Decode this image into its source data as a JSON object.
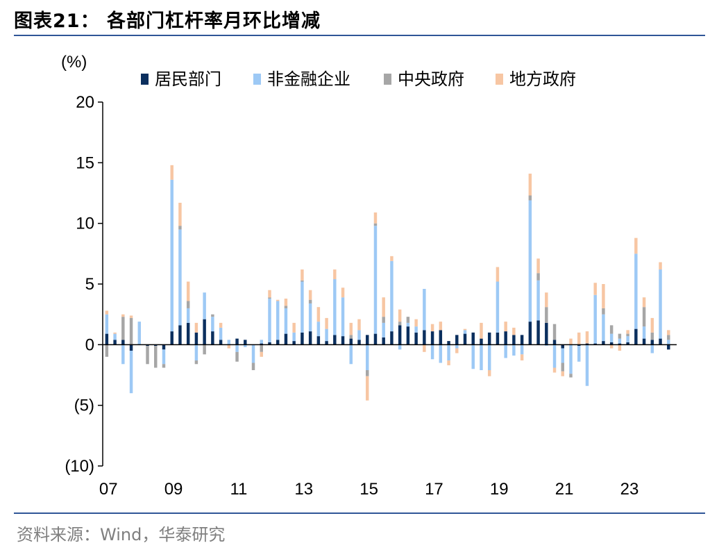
{
  "header": {
    "title": "图表21：  各部门杠杆率月环比增减"
  },
  "footer": {
    "source": "资料来源：Wind，华泰研究"
  },
  "chart_data": {
    "type": "bar",
    "stacked": true,
    "unit_label": "(%)",
    "ylim": [
      -10,
      20
    ],
    "yticks": [
      20,
      15,
      10,
      5,
      0,
      -5,
      -10
    ],
    "ytick_labels": [
      "20",
      "15",
      "10",
      "5",
      "0",
      "(5)",
      "(10)"
    ],
    "xtick_labels": [
      "07",
      "09",
      "11",
      "13",
      "15",
      "17",
      "19",
      "21",
      "23"
    ],
    "legend_position": "top",
    "colors": {
      "household": "#0b2f5e",
      "nonfin": "#9dc9f5",
      "central": "#a6a6a6",
      "local": "#f7c6a3"
    },
    "categories": [
      "07Q1",
      "07Q2",
      "07Q3",
      "07Q4",
      "08Q1",
      "08Q2",
      "08Q3",
      "08Q4",
      "09Q1",
      "09Q2",
      "09Q3",
      "09Q4",
      "10Q1",
      "10Q2",
      "10Q3",
      "10Q4",
      "11Q1",
      "11Q2",
      "11Q3",
      "11Q4",
      "12Q1",
      "12Q2",
      "12Q3",
      "12Q4",
      "13Q1",
      "13Q2",
      "13Q3",
      "13Q4",
      "14Q1",
      "14Q2",
      "14Q3",
      "14Q4",
      "15Q1",
      "15Q2",
      "15Q3",
      "15Q4",
      "16Q1",
      "16Q2",
      "16Q3",
      "16Q4",
      "17Q1",
      "17Q2",
      "17Q3",
      "17Q4",
      "18Q1",
      "18Q2",
      "18Q3",
      "18Q4",
      "19Q1",
      "19Q2",
      "19Q3",
      "19Q4",
      "20Q1",
      "20Q2",
      "20Q3",
      "20Q4",
      "21Q1",
      "21Q2",
      "21Q3",
      "21Q4",
      "22Q1",
      "22Q2",
      "22Q3",
      "22Q4",
      "23Q1",
      "23Q2",
      "23Q3",
      "23Q4",
      "24Q1",
      "24Q2"
    ],
    "series": [
      {
        "name": "居民部门",
        "key": "household",
        "values": [
          0.9,
          0.4,
          0.4,
          -0.5,
          0.0,
          -0.1,
          -0.1,
          -0.4,
          1.1,
          1.6,
          1.8,
          1.0,
          2.1,
          1.1,
          0.4,
          0.0,
          0.5,
          0.4,
          0.0,
          0.1,
          0.2,
          0.4,
          0.9,
          0.3,
          1.0,
          1.1,
          0.7,
          0.3,
          0.8,
          0.7,
          0.5,
          0.4,
          0.8,
          0.9,
          0.6,
          1.1,
          1.6,
          1.5,
          1.0,
          1.2,
          1.1,
          1.2,
          0.3,
          0.8,
          0.9,
          1.0,
          0.5,
          1.0,
          1.0,
          1.1,
          0.8,
          0.8,
          1.9,
          2.0,
          1.8,
          0.4,
          -0.3,
          0.0,
          -0.1,
          0.1,
          0.1,
          0.3,
          0.2,
          0.1,
          0.2,
          1.3,
          0.5,
          0.4,
          0.5,
          -0.4
        ]
      },
      {
        "name": "非金融企业",
        "key": "nonfin",
        "values": [
          1.6,
          0.5,
          -1.6,
          -3.5,
          1.9,
          0.0,
          0.0,
          -1.2,
          12.5,
          7.9,
          1.2,
          -1.3,
          2.2,
          1.2,
          1.0,
          0.4,
          -0.6,
          -0.2,
          -1.5,
          0.3,
          3.6,
          3.2,
          2.1,
          0.7,
          4.2,
          2.3,
          1.2,
          1.0,
          4.6,
          3.2,
          -1.6,
          0.8,
          -2.1,
          8.9,
          1.2,
          5.8,
          -0.4,
          0.3,
          0.5,
          3.4,
          -1.2,
          -1.5,
          -1.3,
          -0.3,
          0.3,
          -2.0,
          -2.1,
          -2.1,
          4.2,
          -1.1,
          -0.9,
          -0.8,
          10.0,
          3.3,
          -0.1,
          -1.9,
          -1.2,
          -2.4,
          -1.3,
          -3.4,
          4.0,
          2.2,
          0.7,
          0.4,
          0.5,
          6.2,
          1.0,
          -0.7,
          5.7,
          0.4
        ]
      },
      {
        "name": "中央政府",
        "key": "central",
        "values": [
          -1.0,
          0.0,
          1.9,
          2.2,
          0.0,
          -1.5,
          -1.8,
          -0.3,
          0.0,
          0.3,
          0.6,
          -0.3,
          -0.8,
          0.2,
          0.0,
          0.0,
          -0.8,
          0.0,
          -0.6,
          -0.6,
          0.1,
          0.0,
          0.2,
          0.0,
          0.1,
          0.3,
          0.0,
          0.0,
          0.0,
          0.0,
          0.3,
          0.0,
          -0.5,
          0.2,
          0.5,
          0.0,
          0.3,
          0.5,
          0.0,
          0.0,
          0.0,
          0.0,
          0.0,
          0.0,
          0.0,
          0.0,
          0.0,
          0.0,
          0.0,
          0.0,
          0.0,
          0.0,
          0.4,
          0.6,
          1.3,
          1.3,
          -0.7,
          -0.3,
          0.0,
          0.0,
          0.0,
          0.5,
          0.7,
          0.4,
          0.2,
          0.0,
          1.6,
          0.6,
          0.0,
          0.4
        ]
      },
      {
        "name": "地方政府",
        "key": "local",
        "values": [
          0.3,
          0.1,
          0.2,
          0.2,
          0.0,
          0.0,
          0.0,
          0.0,
          1.2,
          1.9,
          1.6,
          0.8,
          0.0,
          0.0,
          0.4,
          -0.3,
          0.0,
          0.0,
          0.0,
          -0.4,
          0.6,
          0.1,
          0.6,
          0.8,
          0.9,
          0.8,
          1.2,
          0.9,
          0.8,
          0.8,
          1.0,
          0.9,
          -2.0,
          0.9,
          1.6,
          0.4,
          1.0,
          0.0,
          0.6,
          -0.6,
          0.6,
          0.7,
          -0.4,
          -0.4,
          0.1,
          0.0,
          1.3,
          -0.5,
          1.2,
          0.8,
          0.6,
          -0.5,
          1.8,
          1.2,
          1.2,
          -0.4,
          -0.4,
          0.5,
          1.0,
          1.0,
          1.0,
          2.0,
          -0.3,
          -0.5,
          0.3,
          1.3,
          0.8,
          1.2,
          0.6,
          0.4
        ]
      }
    ]
  }
}
